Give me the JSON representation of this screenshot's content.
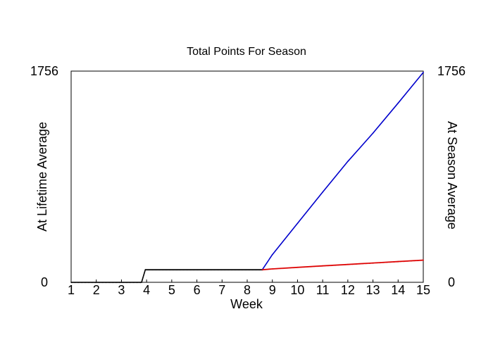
{
  "chart_data": {
    "type": "line",
    "title": "Total Points For Season",
    "xlabel": "Week",
    "ylabel_left": "At Lifetime Average",
    "ylabel_right": "At Season Average",
    "ylim": [
      0,
      1756
    ],
    "xlim": [
      1,
      15
    ],
    "x_ticks": [
      1,
      2,
      3,
      4,
      5,
      6,
      7,
      8,
      9,
      10,
      11,
      12,
      13,
      14,
      15
    ],
    "y_tick_labels_left": [
      "0",
      "1756"
    ],
    "y_tick_labels_right": [
      "0",
      "1756"
    ],
    "grid": false,
    "colors": {
      "lifetime": "#0000cc",
      "season": "#dd0000",
      "actual": "#000000"
    },
    "series": [
      {
        "x": [
          1,
          3.8,
          3.95,
          8.6
        ],
        "y": [
          0,
          0,
          105,
          105
        ],
        "dashed": false
      },
      {
        "x": [
          8.6,
          9,
          10,
          11,
          12,
          13,
          14,
          15
        ],
        "y": [
          105,
          230,
          490,
          750,
          1005,
          1240,
          1490,
          1745
        ]
      },
      {
        "x": [
          8.6,
          9,
          10,
          11,
          12,
          13,
          14,
          15
        ],
        "y": [
          105,
          112,
          125,
          137,
          149,
          161,
          173,
          185
        ]
      }
    ]
  }
}
